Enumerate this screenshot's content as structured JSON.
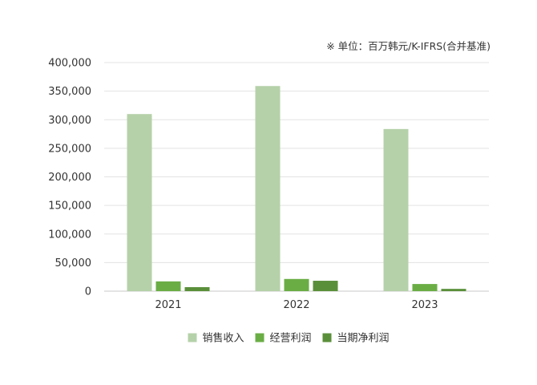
{
  "unit_note": "※ 单位：百万韩元/K-IFRS(合并基准)",
  "chart_data": {
    "type": "bar",
    "categories": [
      "2021",
      "2022",
      "2023"
    ],
    "series": [
      {
        "name": "销售收入",
        "color": "#b5d1a9",
        "values": [
          309901,
          358949,
          283712
        ]
      },
      {
        "name": "经营利润",
        "color": "#6aad45",
        "values": [
          17105,
          21343,
          12500
        ]
      },
      {
        "name": "当期净利润",
        "color": "#5a8f3a",
        "values": [
          7000,
          18200,
          4000
        ]
      }
    ],
    "ylim": [
      0,
      400000
    ],
    "yticks": [
      0,
      50000,
      100000,
      150000,
      200000,
      250000,
      300000,
      350000,
      400000
    ],
    "ytick_labels": [
      "0",
      "50,000",
      "100,000",
      "150,000",
      "200,000",
      "250,000",
      "300,000",
      "350,000",
      "400,000"
    ],
    "grid": true,
    "legend_position": "bottom-center"
  }
}
